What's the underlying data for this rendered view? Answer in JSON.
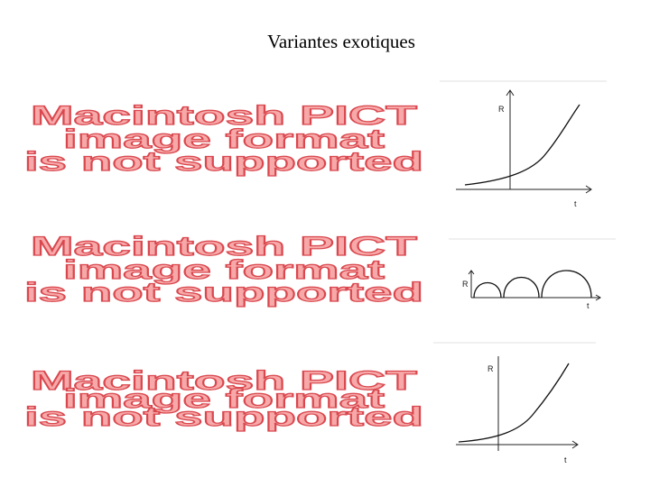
{
  "title": "Variantes exotiques",
  "placeholders": [
    {
      "lines": [
        "Macintosh PICT",
        "image format",
        "is not supported"
      ]
    },
    {
      "lines": [
        "Macintosh PICT",
        "image format",
        "is not supported"
      ]
    },
    {
      "lines": [
        "Macintosh PICT",
        "image format",
        "is not supported"
      ]
    }
  ],
  "graphs": [
    {
      "y_label": "R",
      "x_label": "t"
    },
    {
      "y_label": "R",
      "x_label": "t"
    },
    {
      "y_label": "R",
      "x_label": "t"
    }
  ]
}
